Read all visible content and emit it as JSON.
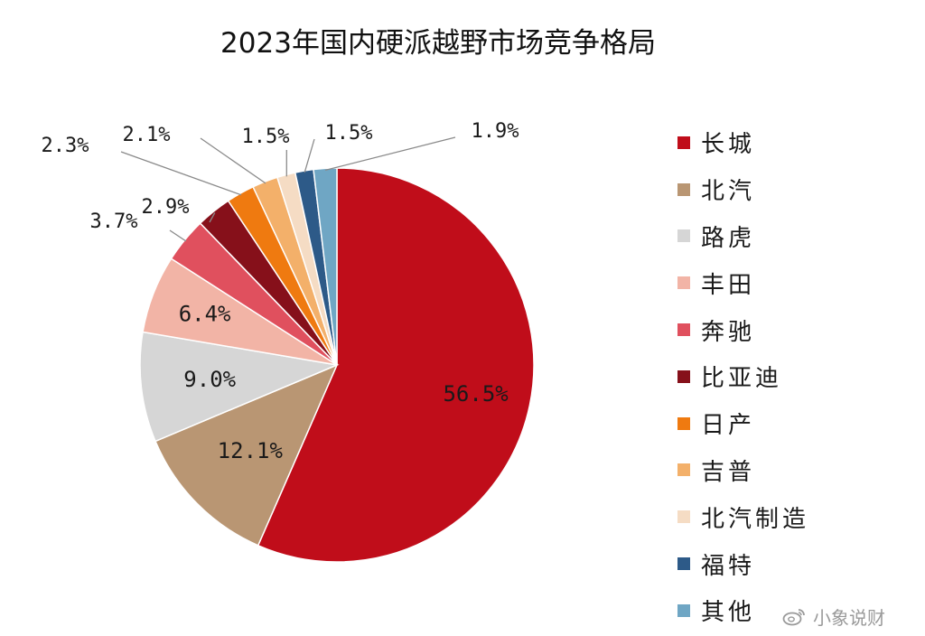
{
  "chart_data": {
    "type": "pie",
    "title": "2023年国内硬派越野市场竞争格局",
    "legend_position": "right",
    "slices": [
      {
        "label": "长城",
        "value": 56.5,
        "display": "56.5%",
        "color": "#c00d1a",
        "label_pos": "inside"
      },
      {
        "label": "北汽",
        "value": 12.1,
        "display": "12.1%",
        "color": "#b99673",
        "label_pos": "inside"
      },
      {
        "label": "路虎",
        "value": 9.0,
        "display": "9.0%",
        "color": "#d6d6d6",
        "label_pos": "inside"
      },
      {
        "label": "丰田",
        "value": 6.4,
        "display": "6.4%",
        "color": "#f2b4a6",
        "label_pos": "inside"
      },
      {
        "label": "奔驰",
        "value": 3.7,
        "display": "3.7%",
        "color": "#e0505e",
        "label_pos": "outside"
      },
      {
        "label": "比亚迪",
        "value": 2.9,
        "display": "2.9%",
        "color": "#86101a",
        "label_pos": "outside"
      },
      {
        "label": "日产",
        "value": 2.3,
        "display": "2.3%",
        "color": "#ef7a10",
        "label_pos": "outside"
      },
      {
        "label": "吉普",
        "value": 2.1,
        "display": "2.1%",
        "color": "#f3b06a",
        "label_pos": "outside"
      },
      {
        "label": "北汽制造",
        "value": 1.5,
        "display": "1.5%",
        "color": "#f5dcc4",
        "label_pos": "outside"
      },
      {
        "label": "福特",
        "value": 1.5,
        "display": "1.5%",
        "color": "#2d5a88",
        "label_pos": "outside"
      },
      {
        "label": "其他",
        "value": 1.9,
        "display": "1.9%",
        "color": "#6fa6c4",
        "label_pos": "outside"
      }
    ]
  },
  "watermark": {
    "text": "小象说财",
    "icon": "weibo-icon"
  }
}
